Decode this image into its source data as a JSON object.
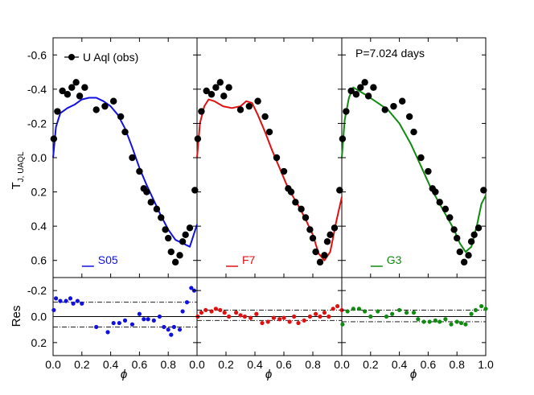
{
  "chart_data": {
    "type": "scatter",
    "annotations": {
      "legend_label": "U Aql (obs)",
      "period": "P=7.024 days",
      "ylabel_main": "T",
      "ylabel_sub": "J, UAQL",
      "ylabel_res": "Res",
      "xlabel": "ϕ"
    },
    "x_ticks": [
      "0.0",
      "0.2",
      "0.4",
      "0.6",
      "0.8",
      "1.0"
    ],
    "main_y_ticks": [
      "-0.6",
      "-0.4",
      "-0.2",
      "0.0",
      "0.2",
      "0.4",
      "0.6"
    ],
    "res_y_ticks": [
      "-0.2",
      "0.0",
      "0.2"
    ],
    "main_ylim": [
      0.7,
      -0.7
    ],
    "res_ylim": [
      0.3,
      -0.3
    ],
    "xlim": [
      0,
      1
    ],
    "observations": {
      "color": "#000000",
      "x": [
        0.005,
        0.03,
        0.065,
        0.1,
        0.13,
        0.16,
        0.185,
        0.22,
        0.3,
        0.36,
        0.42,
        0.47,
        0.5,
        0.55,
        0.6,
        0.63,
        0.65,
        0.68,
        0.72,
        0.75,
        0.78,
        0.8,
        0.82,
        0.85,
        0.88,
        0.9,
        0.92,
        0.95,
        0.985
      ],
      "y": [
        -0.11,
        -0.27,
        -0.39,
        -0.37,
        -0.41,
        -0.44,
        -0.36,
        -0.41,
        -0.28,
        -0.3,
        -0.33,
        -0.24,
        -0.15,
        0.0,
        0.08,
        0.18,
        0.2,
        0.26,
        0.3,
        0.35,
        0.42,
        0.47,
        0.55,
        0.61,
        0.57,
        0.49,
        0.45,
        0.41,
        0.19
      ]
    },
    "series": [
      {
        "name": "S05",
        "color": "#1010e0",
        "model": {
          "x": [
            0.0,
            0.02,
            0.05,
            0.1,
            0.15,
            0.2,
            0.25,
            0.3,
            0.35,
            0.4,
            0.45,
            0.5,
            0.55,
            0.6,
            0.65,
            0.7,
            0.75,
            0.8,
            0.85,
            0.9,
            0.95,
            1.0
          ],
          "y": [
            0.0,
            -0.18,
            -0.26,
            -0.29,
            -0.31,
            -0.34,
            -0.35,
            -0.35,
            -0.33,
            -0.3,
            -0.25,
            -0.17,
            -0.06,
            0.06,
            0.16,
            0.25,
            0.34,
            0.42,
            0.48,
            0.5,
            0.52,
            0.39
          ]
        },
        "residuals": {
          "x": [
            0.005,
            0.02,
            0.05,
            0.09,
            0.12,
            0.14,
            0.17,
            0.2,
            0.3,
            0.38,
            0.42,
            0.46,
            0.5,
            0.55,
            0.6,
            0.63,
            0.66,
            0.7,
            0.74,
            0.77,
            0.8,
            0.82,
            0.84,
            0.88,
            0.9,
            0.93,
            0.96,
            0.98
          ],
          "y": [
            -0.05,
            -0.14,
            -0.12,
            -0.12,
            -0.14,
            -0.1,
            -0.12,
            -0.1,
            0.08,
            0.12,
            0.05,
            0.05,
            0.03,
            0.06,
            -0.02,
            0.02,
            0.02,
            0.03,
            0.0,
            0.08,
            0.1,
            0.14,
            0.08,
            0.1,
            -0.04,
            -0.11,
            -0.22,
            -0.2
          ]
        },
        "res_bounds": [
          -0.11,
          0.08
        ]
      },
      {
        "name": "F7",
        "color": "#e01010",
        "model": {
          "x": [
            0.0,
            0.02,
            0.05,
            0.08,
            0.12,
            0.18,
            0.24,
            0.3,
            0.34,
            0.38,
            0.42,
            0.47,
            0.52,
            0.58,
            0.63,
            0.7,
            0.75,
            0.8,
            0.84,
            0.88,
            0.92,
            0.96,
            1.0
          ],
          "y": [
            0.0,
            -0.2,
            -0.3,
            -0.34,
            -0.33,
            -0.3,
            -0.29,
            -0.3,
            -0.33,
            -0.32,
            -0.25,
            -0.15,
            -0.04,
            0.08,
            0.18,
            0.28,
            0.36,
            0.45,
            0.56,
            0.6,
            0.55,
            0.38,
            0.23
          ]
        },
        "residuals": {
          "x": [
            0.005,
            0.03,
            0.06,
            0.1,
            0.13,
            0.16,
            0.19,
            0.22,
            0.27,
            0.3,
            0.33,
            0.37,
            0.41,
            0.45,
            0.49,
            0.53,
            0.57,
            0.6,
            0.64,
            0.67,
            0.7,
            0.74,
            0.78,
            0.82,
            0.85,
            0.88,
            0.91,
            0.94,
            0.97,
            1.0
          ],
          "y": [
            0.0,
            -0.03,
            -0.05,
            -0.04,
            -0.06,
            -0.05,
            -0.03,
            0.0,
            -0.03,
            -0.01,
            0.0,
            0.01,
            -0.02,
            0.05,
            0.04,
            0.01,
            0.02,
            0.01,
            0.04,
            0.0,
            0.05,
            0.03,
            0.0,
            -0.02,
            0.0,
            -0.03,
            0.0,
            -0.06,
            -0.08,
            -0.05
          ]
        },
        "res_bounds": [
          -0.05,
          0.03
        ]
      },
      {
        "name": "G3",
        "color": "#108a10",
        "model": {
          "x": [
            0.0,
            0.02,
            0.05,
            0.08,
            0.12,
            0.18,
            0.25,
            0.32,
            0.4,
            0.48,
            0.55,
            0.62,
            0.7,
            0.78,
            0.82,
            0.86,
            0.9,
            0.94,
            0.97,
            1.0
          ],
          "y": [
            0.0,
            -0.22,
            -0.35,
            -0.41,
            -0.39,
            -0.36,
            -0.32,
            -0.28,
            -0.2,
            -0.08,
            0.05,
            0.18,
            0.3,
            0.42,
            0.5,
            0.55,
            0.52,
            0.39,
            0.27,
            0.22
          ]
        },
        "residuals": {
          "x": [
            0.005,
            0.04,
            0.08,
            0.12,
            0.16,
            0.2,
            0.25,
            0.31,
            0.35,
            0.4,
            0.45,
            0.5,
            0.53,
            0.57,
            0.61,
            0.65,
            0.68,
            0.72,
            0.76,
            0.8,
            0.83,
            0.86,
            0.9,
            0.93,
            0.97,
            1.0
          ],
          "y": [
            0.06,
            -0.04,
            -0.06,
            -0.06,
            -0.04,
            0.0,
            -0.04,
            0.0,
            -0.02,
            -0.05,
            -0.03,
            -0.03,
            0.02,
            0.04,
            0.04,
            0.03,
            0.04,
            0.02,
            0.06,
            0.04,
            0.05,
            0.06,
            -0.02,
            -0.05,
            -0.08,
            -0.06
          ]
        },
        "res_bounds": [
          -0.05,
          0.04
        ]
      }
    ]
  }
}
